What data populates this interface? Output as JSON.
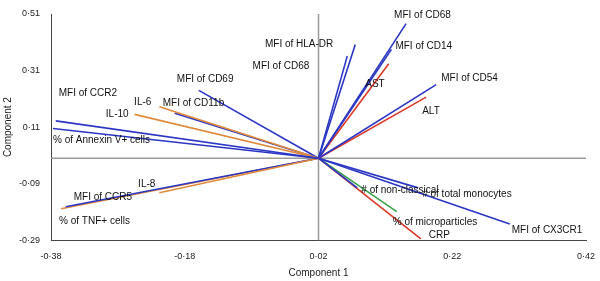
{
  "chart_data": {
    "type": "biplot",
    "x_label": "Component 1",
    "y_label": "Component 2",
    "origin": [
      0.02,
      0
    ],
    "xlim": [
      -0.38,
      0.42
    ],
    "xticks": [
      {
        "value": -0.38,
        "label": "-0·38"
      },
      {
        "value": -0.18,
        "label": "-0·18"
      },
      {
        "value": 0.02,
        "label": "0·02"
      },
      {
        "value": 0.22,
        "label": "0·22"
      },
      {
        "value": 0.42,
        "label": "0·42"
      }
    ],
    "ylim": [
      -0.29,
      0.51
    ],
    "yticks": [
      {
        "value": -0.29,
        "label": "-0·29"
      },
      {
        "value": -0.09,
        "label": "-0·09"
      },
      {
        "value": 0.11,
        "label": "0·11"
      },
      {
        "value": 0.31,
        "label": "0·31"
      },
      {
        "value": 0.51,
        "label": "0·51"
      }
    ],
    "grid": false,
    "vectors": [
      {
        "name": "MFI of CCR2",
        "color": "#2b36c4",
        "x": -0.373,
        "y": 0.132
      },
      {
        "name": "% of Annexin V+ cells",
        "color": "#2b36c4",
        "x": -0.377,
        "y": 0.105
      },
      {
        "name": "IL-10",
        "color": "#e08a3c",
        "x": -0.255,
        "y": 0.155
      },
      {
        "name": "IL-6",
        "color": "#e08a3c",
        "x": -0.218,
        "y": 0.182
      },
      {
        "name": "MFI of CD11b",
        "color": "#2b36c4",
        "x": -0.195,
        "y": 0.159
      },
      {
        "name": "MFI of CD69",
        "color": "#2b36c4",
        "x": -0.159,
        "y": 0.24
      },
      {
        "name": "IL-8",
        "color": "#e08a3c",
        "x": -0.218,
        "y": -0.122
      },
      {
        "name": "MFI of CCR5",
        "color": "#2b36c4",
        "x": -0.358,
        "y": -0.172
      },
      {
        "name": "% of TNF+ cells",
        "color": "#e08a3c",
        "x": -0.365,
        "y": -0.179
      },
      {
        "name": "MFI of HLA-DR",
        "color": "#2b36c4",
        "x": 0.075,
        "y": 0.402
      },
      {
        "name": "MFI of CD68",
        "color": "#2b36c4",
        "x": 0.063,
        "y": 0.361
      },
      {
        "name": "MFI of CD68",
        "color": "#2b36c4",
        "x": 0.151,
        "y": 0.476
      },
      {
        "name": "MFI of CD14",
        "color": "#2b36c4",
        "x": 0.129,
        "y": 0.385
      },
      {
        "name": "AST",
        "color": "#d93a2a",
        "x": 0.125,
        "y": 0.334
      },
      {
        "name": "MFI of CD54",
        "color": "#2b36c4",
        "x": 0.196,
        "y": 0.26
      },
      {
        "name": "ALT",
        "color": "#d93a2a",
        "x": 0.181,
        "y": 0.216
      },
      {
        "name": "# of total monocytes",
        "color": "#2b36c4",
        "x": 0.169,
        "y": -0.105
      },
      {
        "name": "# of non-classical",
        "color": "#2b36c4",
        "x": 0.078,
        "y": -0.105
      },
      {
        "name": "MFI of CX3CR1",
        "color": "#2b36c4",
        "x": 0.306,
        "y": -0.233
      },
      {
        "name": "% of microparticles",
        "color": "#3aa14a",
        "x": 0.137,
        "y": -0.189
      },
      {
        "name": "CRP",
        "color": "#d93a2a",
        "x": 0.173,
        "y": -0.285
      }
    ]
  }
}
